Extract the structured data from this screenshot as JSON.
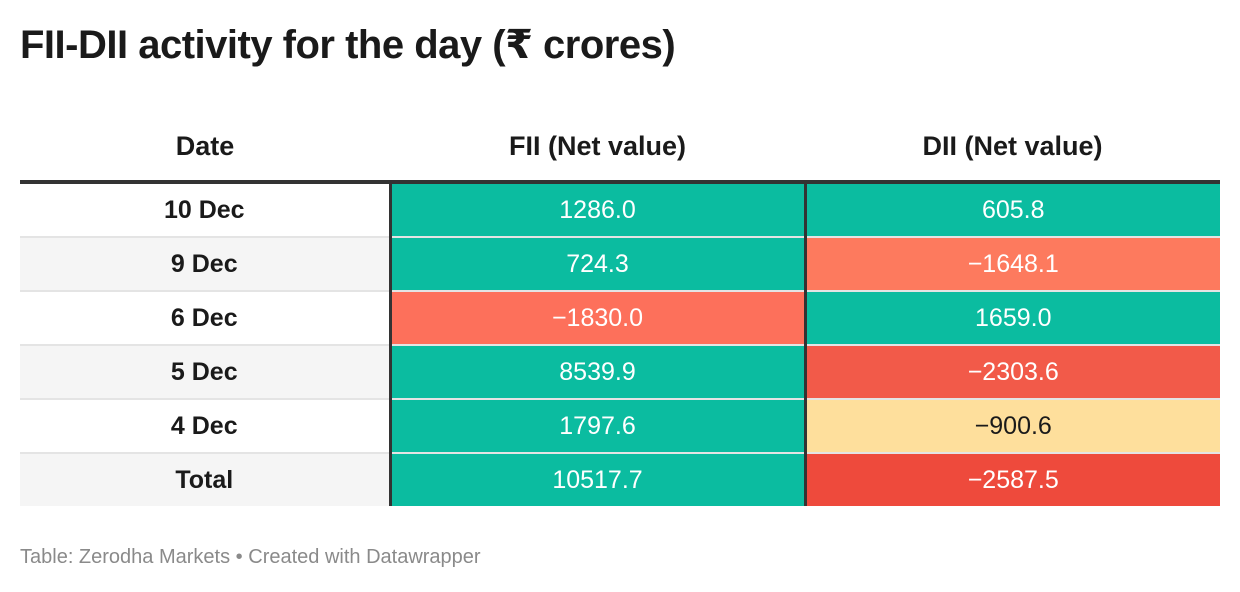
{
  "title": "FII-DII activity for the day (₹ crores)",
  "footer": {
    "source_label": "Table: Zerodha Markets",
    "separator": "•",
    "credit": "Created with Datawrapper"
  },
  "chart_data": {
    "type": "table",
    "title": "FII-DII activity for the day (₹ crores)",
    "columns": [
      "Date",
      "FII (Net value)",
      "DII (Net value)"
    ],
    "rows": [
      {
        "date": "10 Dec",
        "fii": "1286.0",
        "dii": "605.8",
        "fii_color": "#0bbca0",
        "dii_color": "#0bbca0",
        "fii_text_color": "#ffffff",
        "dii_text_color": "#ffffff"
      },
      {
        "date": "9 Dec",
        "fii": "724.3",
        "dii": "−1648.1",
        "fii_color": "#0bbca0",
        "dii_color": "#fd7a5e",
        "fii_text_color": "#ffffff",
        "dii_text_color": "#ffffff"
      },
      {
        "date": "6 Dec",
        "fii": "−1830.0",
        "dii": "1659.0",
        "fii_color": "#fd705b",
        "dii_color": "#0bbca0",
        "fii_text_color": "#ffffff",
        "dii_text_color": "#ffffff"
      },
      {
        "date": "5 Dec",
        "fii": "8539.9",
        "dii": "−2303.6",
        "fii_color": "#0bbca0",
        "dii_color": "#f25a49",
        "fii_text_color": "#ffffff",
        "dii_text_color": "#ffffff"
      },
      {
        "date": "4 Dec",
        "fii": "1797.6",
        "dii": "−900.6",
        "fii_color": "#0bbca0",
        "dii_color": "#fedf9c",
        "fii_text_color": "#ffffff",
        "dii_text_color": "#1a1a1a"
      },
      {
        "date": "Total",
        "fii": "10517.7",
        "dii": "−2587.5",
        "fii_color": "#0bbca0",
        "dii_color": "#ee4a3c",
        "fii_text_color": "#ffffff",
        "dii_text_color": "#ffffff"
      }
    ]
  }
}
